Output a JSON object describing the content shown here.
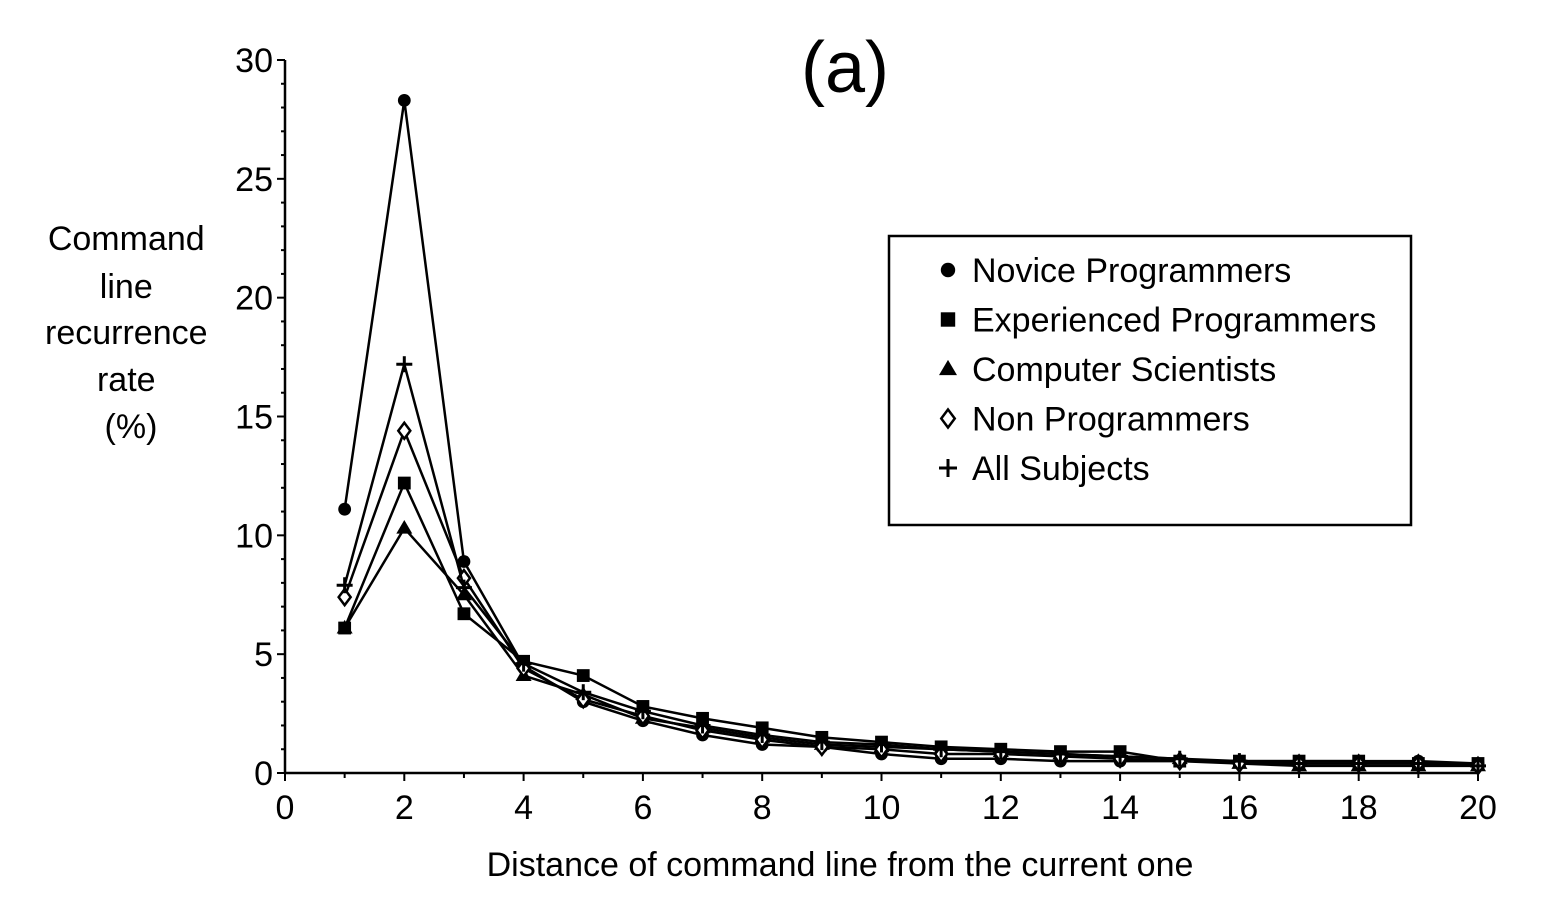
{
  "chart_data": {
    "type": "line",
    "title": "(a)",
    "xlabel": "Distance of command line from the current one",
    "ylabel_lines": [
      "Command",
      "line",
      "recurrence",
      "rate",
      "(%)"
    ],
    "xlim": [
      0,
      20
    ],
    "ylim": [
      0,
      30
    ],
    "x_ticks": [
      0,
      2,
      4,
      6,
      8,
      10,
      12,
      14,
      16,
      18,
      20
    ],
    "y_ticks": [
      0,
      5,
      10,
      15,
      20,
      25,
      30
    ],
    "grid": false,
    "legend_position": "upper-right",
    "x": [
      1,
      2,
      3,
      4,
      5,
      6,
      7,
      8,
      9,
      10,
      11,
      12,
      13,
      14,
      15,
      16,
      17,
      18,
      19,
      20
    ],
    "series": [
      {
        "name": "Novice Programmers",
        "marker": "circle",
        "values": [
          11.1,
          28.3,
          8.9,
          4.5,
          3.0,
          2.2,
          1.6,
          1.2,
          1.1,
          0.8,
          0.6,
          0.6,
          0.5,
          0.5,
          0.5,
          0.5,
          0.5,
          0.5,
          0.5,
          0.4
        ]
      },
      {
        "name": "Experienced Programmers",
        "marker": "square",
        "values": [
          6.1,
          12.2,
          6.7,
          4.7,
          4.1,
          2.8,
          2.3,
          1.9,
          1.5,
          1.3,
          1.1,
          1.0,
          0.9,
          0.9,
          0.5,
          0.5,
          0.5,
          0.5,
          0.4,
          0.4
        ]
      },
      {
        "name": "Computer Scientists",
        "marker": "triangle",
        "values": [
          6.1,
          10.3,
          7.5,
          4.1,
          3.3,
          2.3,
          1.9,
          1.5,
          1.2,
          1.1,
          1.0,
          0.9,
          0.8,
          0.7,
          0.6,
          0.4,
          0.3,
          0.3,
          0.3,
          0.3
        ]
      },
      {
        "name": "Non Programmers",
        "marker": "diamond",
        "values": [
          7.4,
          14.4,
          8.2,
          4.4,
          3.1,
          2.4,
          1.8,
          1.4,
          1.1,
          1.0,
          0.8,
          0.8,
          0.7,
          0.6,
          0.5,
          0.4,
          0.4,
          0.4,
          0.4,
          0.3
        ]
      },
      {
        "name": "All Subjects",
        "marker": "plus",
        "values": [
          7.9,
          17.2,
          7.8,
          4.6,
          3.4,
          2.6,
          2.0,
          1.6,
          1.3,
          1.2,
          1.0,
          0.9,
          0.8,
          0.7,
          0.6,
          0.5,
          0.4,
          0.4,
          0.4,
          0.3
        ]
      }
    ]
  }
}
